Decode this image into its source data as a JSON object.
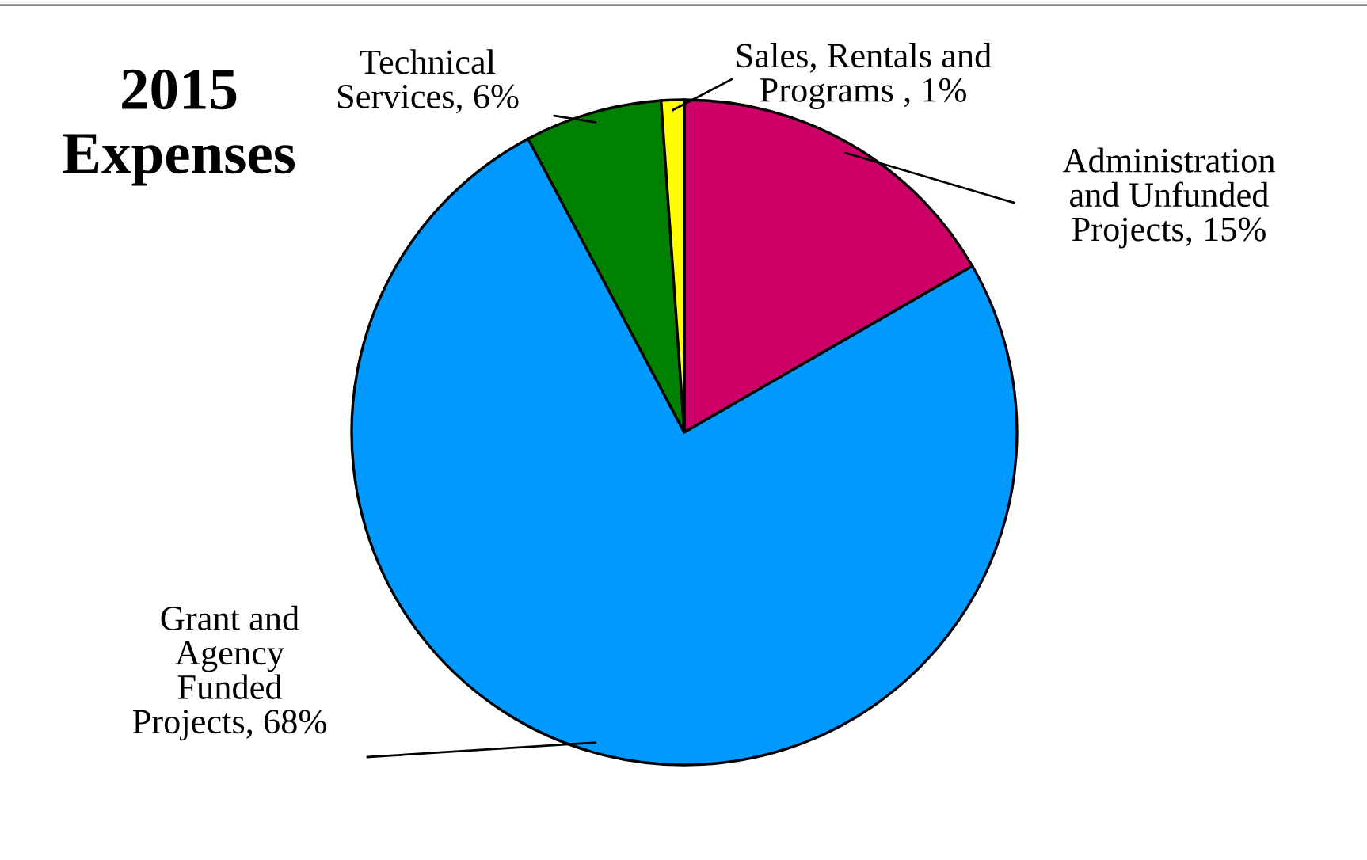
{
  "chart_data": {
    "type": "pie",
    "title": "2015\nExpenses",
    "categories": [
      "Administration\nand Unfunded\nProjects",
      "Grant and\nAgency\nFunded\nProjects",
      "Technical\nServices",
      "Sales, Rentals and\nPrograms "
    ],
    "values": [
      15,
      68,
      6,
      1
    ],
    "value_labels": [
      "15%",
      "68%",
      "6%",
      "1%"
    ],
    "colors": [
      "#cc0066",
      "#0099ff",
      "#008000",
      "#ffff00"
    ]
  }
}
